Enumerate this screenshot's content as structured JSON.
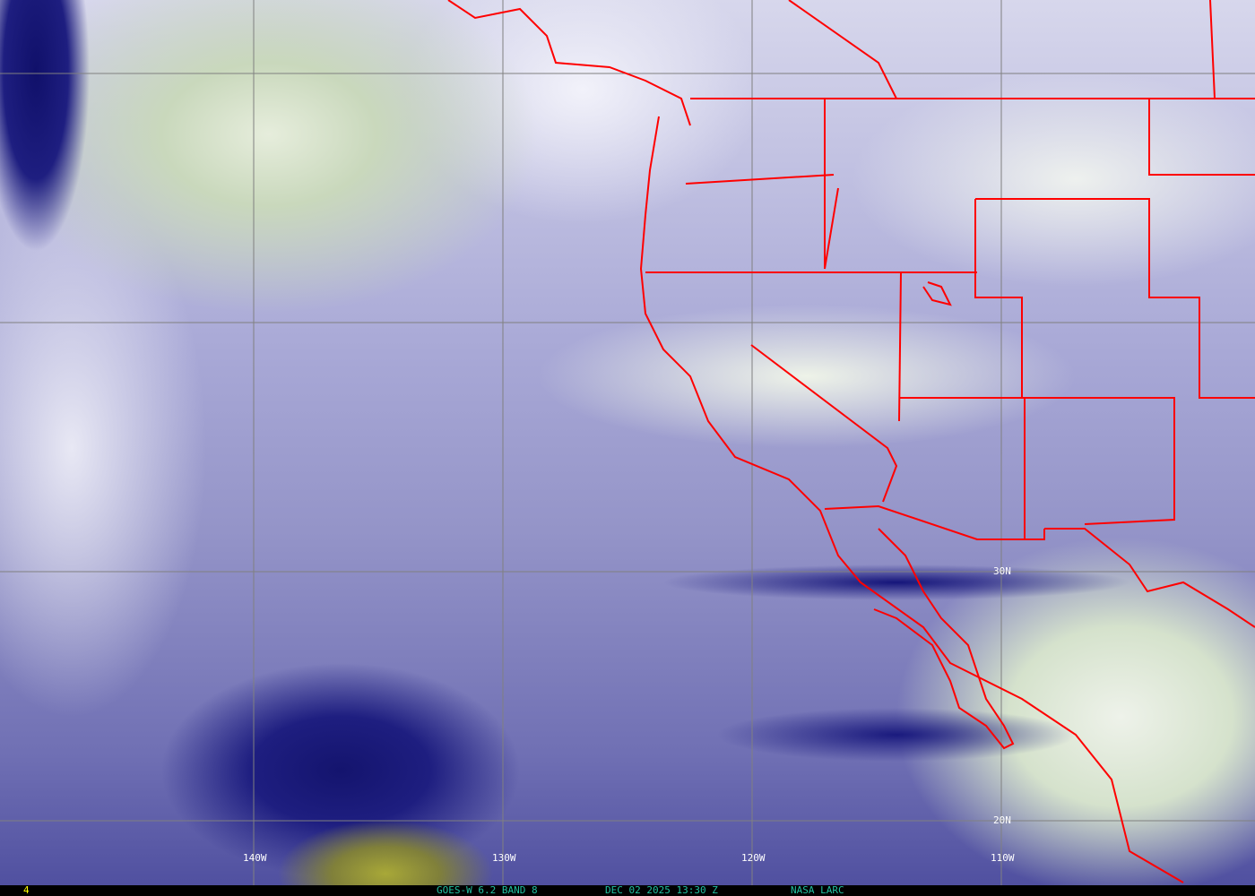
{
  "map": {
    "grid_labels": {
      "lon": [
        "140W",
        "130W",
        "120W",
        "110W"
      ],
      "lat": [
        "30N",
        "20N"
      ]
    },
    "colors": {
      "borders": "#ff0000",
      "grid": "#808080",
      "footer_text": "#20c0a0",
      "frame_number": "#ffff00"
    }
  },
  "footer": {
    "frame_number": "4",
    "satellite": "GOES-W 6.2 BAND 8",
    "datetime": "DEC 02 2025 13:30 Z",
    "source": "NASA LARC"
  }
}
